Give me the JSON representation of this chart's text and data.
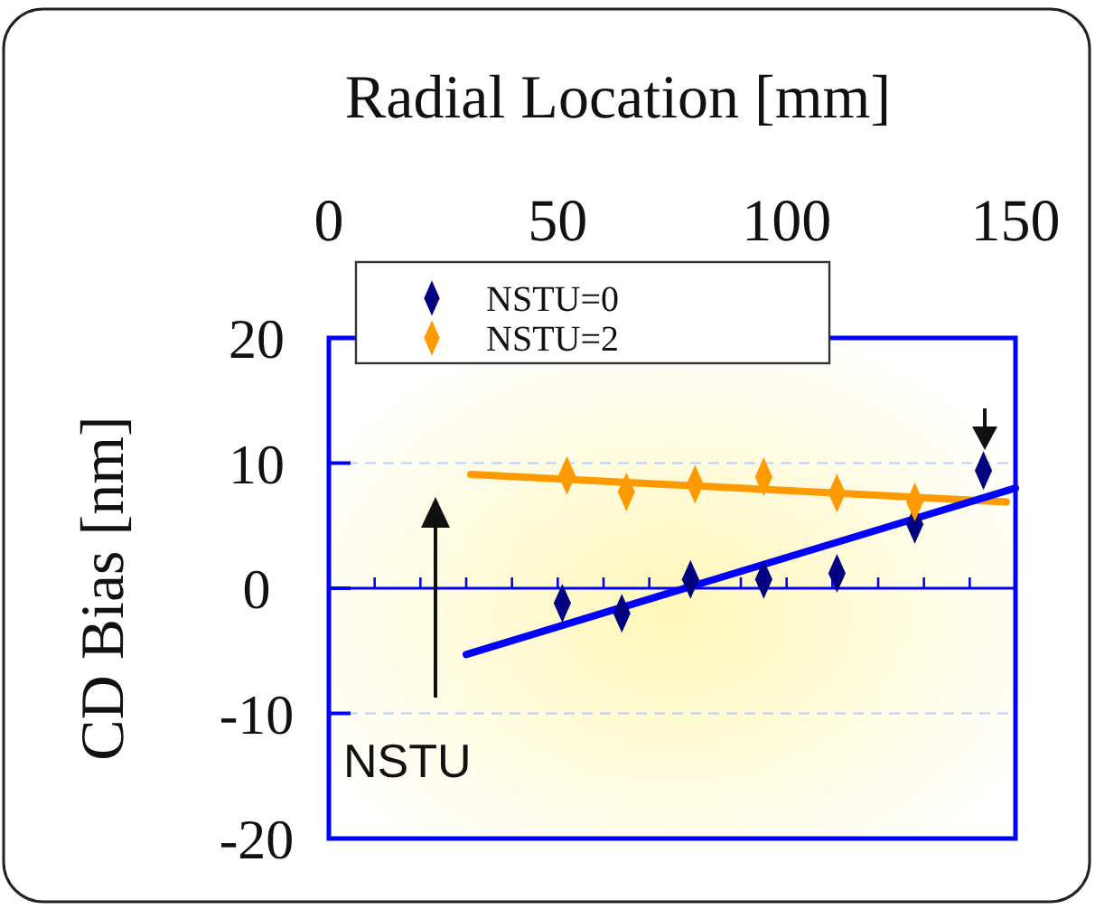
{
  "chart_data": {
    "type": "scatter",
    "xlabel": "Radial Location [mm]",
    "ylabel": "CD Bias [nm]",
    "xlim": [
      0,
      150
    ],
    "ylim": [
      -20,
      20
    ],
    "xticks": [
      0,
      {
        "value": 10,
        "label": null
      },
      {
        "value": 20,
        "label": null
      },
      {
        "value": 30,
        "label": null
      },
      {
        "value": 40,
        "label": null
      },
      50,
      {
        "value": 60,
        "label": null
      },
      {
        "value": 70,
        "label": null
      },
      {
        "value": 80,
        "label": null
      },
      {
        "value": 90,
        "label": null
      },
      100,
      {
        "value": 110,
        "label": null
      },
      {
        "value": 120,
        "label": null
      },
      {
        "value": 130,
        "label": null
      },
      {
        "value": 140,
        "label": null
      },
      150
    ],
    "yticks": [
      -20,
      -10,
      0,
      10,
      20
    ],
    "grid": "y",
    "legend": "top left",
    "marker": "diamond",
    "series": [
      {
        "name": "NSTU=0",
        "color": "#000080",
        "x": [
          51,
          64,
          79,
          95,
          111,
          128,
          143
        ],
        "values": [
          -1.2,
          -2.0,
          0.7,
          0.7,
          1.2,
          5.1,
          9.4
        ]
      },
      {
        "name": "NSTU=2",
        "color": "#ff9900",
        "x": [
          52,
          65,
          80,
          95,
          111,
          128
        ],
        "values": [
          9.0,
          7.7,
          8.3,
          8.9,
          7.6,
          6.9
        ]
      },
      {
        "type": "line",
        "color": "#ff9900",
        "marker": "none",
        "x": [
          31,
          148
        ],
        "values": [
          9.1,
          6.9
        ]
      },
      {
        "type": "line",
        "color": "#0000ff",
        "marker": "none",
        "x": [
          30,
          150
        ],
        "values": [
          -5.3,
          8.0
        ]
      }
    ],
    "ref_lines": [
      {
        "axis": "y",
        "value": 0,
        "color": "#0000ff"
      }
    ],
    "annotations": [
      "NSTU"
    ]
  }
}
